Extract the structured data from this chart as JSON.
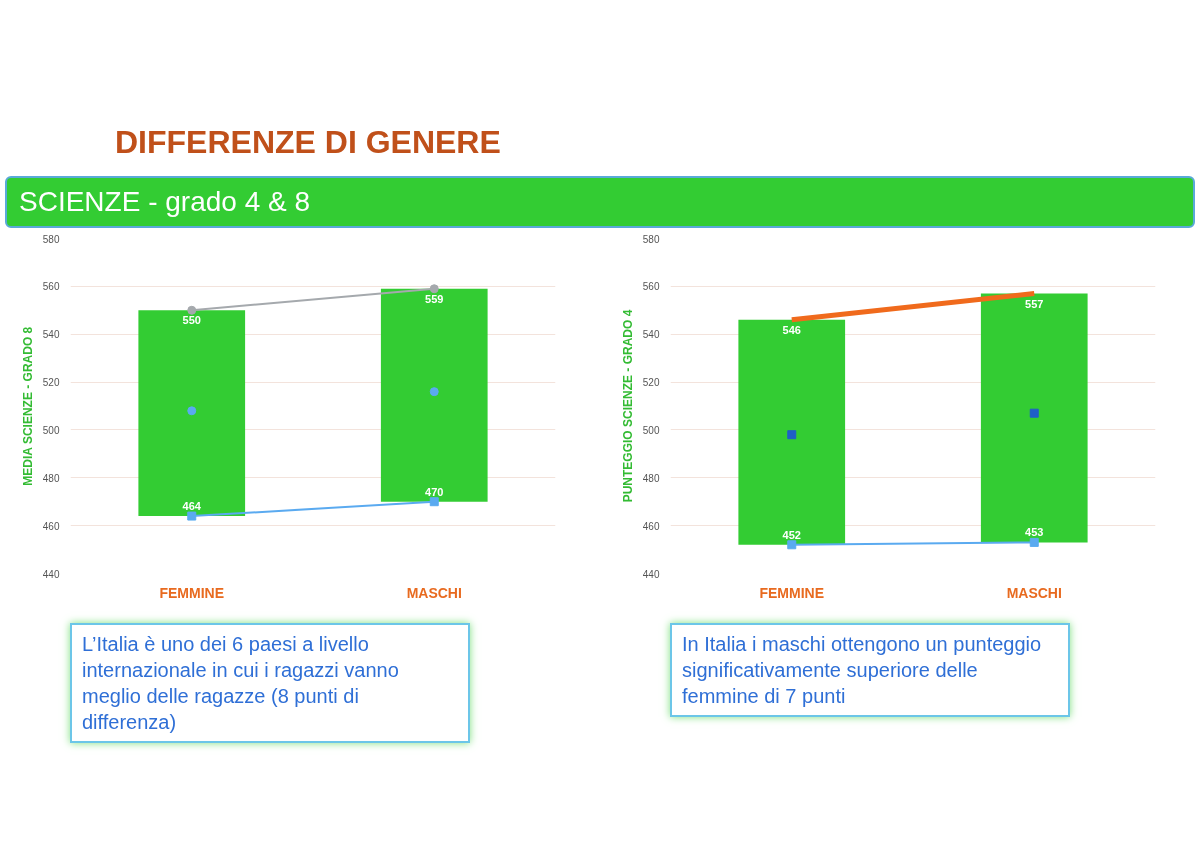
{
  "chart_data": [
    {
      "type": "bar",
      "title": "DIFFERENZE DI GENERE",
      "subtitle": "SCIENZE - grado 4 & 8",
      "ylabel": "MEDIA SCIENZE - GRADO 8",
      "categories": [
        "FEMMINE",
        "MASCHI"
      ],
      "ylim": [
        440,
        580
      ],
      "yticks": [
        440,
        460,
        480,
        500,
        520,
        540,
        560,
        580
      ],
      "grid": "y",
      "annotations": [
        "L’Italia è uno dei 6 paesi a livello internazionale in cui i ragazzi vanno meglio delle ragazze (8 punti di differenza)"
      ],
      "series": [
        {
          "color": "#33cc33",
          "base": [
            464,
            470
          ],
          "values": [
            86,
            89
          ]
        },
        {
          "type": "line",
          "color": "#a5a9ad",
          "marker": "circle",
          "values": [
            550,
            559
          ],
          "value_labels": [
            "550",
            "559"
          ]
        },
        {
          "type": "line",
          "color": "#5aaaf0",
          "marker": "square",
          "values": [
            464,
            470
          ],
          "value_labels": [
            "464",
            "470"
          ]
        },
        {
          "type": "scatter",
          "color": "#5aaaf0",
          "marker": "circle",
          "values": [
            508,
            516
          ]
        }
      ]
    },
    {
      "type": "bar",
      "ylabel": "PUNTEGGIO SCIENZE - GRADO 4",
      "categories": [
        "FEMMINE",
        "MASCHI"
      ],
      "ylim": [
        440,
        580
      ],
      "yticks": [
        440,
        460,
        480,
        500,
        520,
        540,
        560,
        580
      ],
      "grid": "y",
      "annotations": [
        "In Italia i maschi ottengono un punteggio significativamente superiore delle femmine di  7 punti"
      ],
      "series": [
        {
          "color": "#33cc33",
          "base": [
            452,
            453
          ],
          "values": [
            94,
            104
          ]
        },
        {
          "type": "line",
          "color": "#f06a1c",
          "marker": "none",
          "values": [
            546,
            557
          ],
          "value_labels": [
            "546",
            "557"
          ]
        },
        {
          "type": "line",
          "color": "#5aaaf0",
          "marker": "square",
          "values": [
            452,
            453
          ],
          "value_labels": [
            "452",
            "453"
          ]
        },
        {
          "type": "scatter",
          "color": "#1f5fc8",
          "marker": "square",
          "values": [
            498,
            507
          ]
        }
      ]
    }
  ]
}
